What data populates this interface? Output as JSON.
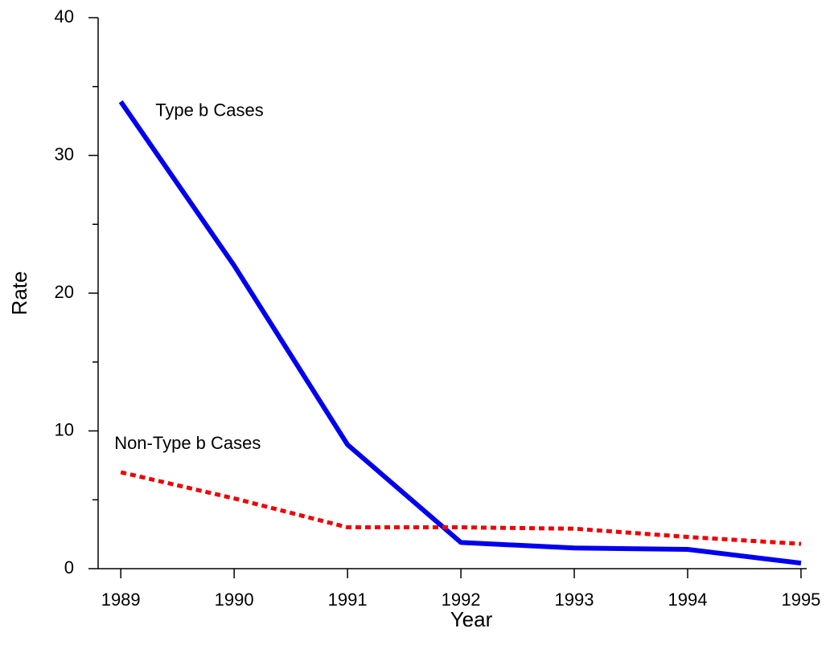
{
  "chart_data": {
    "type": "line",
    "x": [
      1989,
      1990,
      1991,
      1992,
      1993,
      1994,
      1995
    ],
    "xlabel": "Year",
    "ylabel": "Rate",
    "xlim": [
      1988.8,
      1995.05
    ],
    "xticks": [
      1989,
      1990,
      1991,
      1992,
      1993,
      1994,
      1995
    ],
    "ylim": [
      0,
      40
    ],
    "yticks": [
      0,
      10,
      20,
      30,
      40
    ],
    "yminor_ticks": [
      5,
      15,
      25,
      35
    ],
    "series": [
      {
        "name": "Type b Cases",
        "color": "#0000ee",
        "dash": "solid",
        "values": [
          33.9,
          22.0,
          9.0,
          1.9,
          1.5,
          1.4,
          0.4
        ]
      },
      {
        "name": "Non-Type b Cases",
        "color": "#ee0000",
        "dash": "dotted",
        "values": [
          7.0,
          5.1,
          3.0,
          3.0,
          2.9,
          2.3,
          1.8
        ]
      }
    ]
  }
}
